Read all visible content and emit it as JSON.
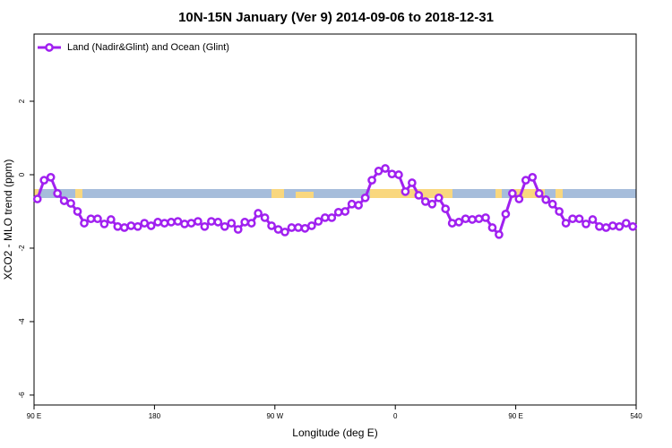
{
  "chart_data": {
    "type": "line",
    "title": "10N-15N January (Ver 9)   2014-09-06 to 2018-12-31",
    "x_label": "Longitude (deg E)",
    "y_label": "XCO2 - MLO trend (ppm)",
    "x": [
      92.5,
      97.5,
      102.5,
      107.5,
      112.5,
      117.5,
      122.5,
      127.5,
      132.5,
      137.5,
      142.5,
      147.5,
      152.5,
      157.5,
      162.5,
      167.5,
      172.5,
      177.5,
      182.5,
      187.5,
      192.5,
      197.5,
      202.5,
      207.5,
      212.5,
      217.5,
      222.5,
      227.5,
      232.5,
      237.5,
      242.5,
      247.5,
      252.5,
      257.5,
      262.5,
      267.5,
      272.5,
      277.5,
      282.5,
      287.5,
      292.5,
      297.5,
      302.5,
      307.5,
      312.5,
      317.5,
      322.5,
      327.5,
      332.5,
      337.5,
      342.5,
      347.5,
      352.5,
      357.5,
      362.5,
      367.5,
      372.5,
      377.5,
      382.5,
      387.5,
      392.5,
      397.5,
      402.5,
      407.5,
      412.5,
      417.5,
      422.5,
      427.5,
      432.5,
      437.5,
      442.5,
      447.5,
      452.5,
      457.5,
      462.5,
      467.5,
      472.5,
      477.5,
      482.5,
      487.5,
      492.5,
      497.5,
      502.5,
      507.5,
      512.5,
      517.5,
      522.5,
      527.5,
      532.5,
      537.5
    ],
    "series": [
      {
        "name": "Land (Nadir&Glint) and Ocean (Glint)",
        "color": "#a020f0",
        "values": [
          -0.66,
          -0.15,
          -0.07,
          -0.51,
          -0.71,
          -0.78,
          -1.0,
          -1.32,
          -1.2,
          -1.2,
          -1.34,
          -1.22,
          -1.41,
          -1.44,
          -1.39,
          -1.41,
          -1.32,
          -1.39,
          -1.29,
          -1.32,
          -1.29,
          -1.27,
          -1.34,
          -1.32,
          -1.27,
          -1.41,
          -1.27,
          -1.29,
          -1.41,
          -1.32,
          -1.49,
          -1.29,
          -1.32,
          -1.05,
          -1.17,
          -1.39,
          -1.49,
          -1.56,
          -1.44,
          -1.44,
          -1.46,
          -1.39,
          -1.27,
          -1.17,
          -1.17,
          -1.02,
          -1.0,
          -0.8,
          -0.83,
          -0.63,
          -0.15,
          0.1,
          0.17,
          0.02,
          0.0,
          -0.46,
          -0.22,
          -0.56,
          -0.73,
          -0.8,
          -0.63,
          -0.93,
          -1.32,
          -1.29,
          -1.2,
          -1.22,
          -1.2,
          -1.17,
          -1.44,
          -1.63,
          -1.07,
          -0.51,
          -0.66,
          -0.15,
          -0.07,
          -0.51,
          -0.68,
          -0.8,
          -1.0,
          -1.32,
          -1.2,
          -1.2,
          -1.34,
          -1.22,
          -1.41,
          -1.44,
          -1.39,
          -1.41,
          -1.32,
          -1.41
        ]
      }
    ],
    "xlim": [
      90,
      540
    ],
    "xticks": [
      {
        "value": 90,
        "label": "90 E"
      },
      180,
      {
        "value": 270,
        "label": "90 W"
      },
      {
        "value": 360,
        "label": "0"
      },
      {
        "value": 450,
        "label": "90 E"
      },
      540
    ],
    "ylim": [
      -6.27,
      3.83
    ],
    "yticks": [
      -6,
      -4,
      -2,
      0,
      2
    ],
    "legend": "top-left"
  }
}
